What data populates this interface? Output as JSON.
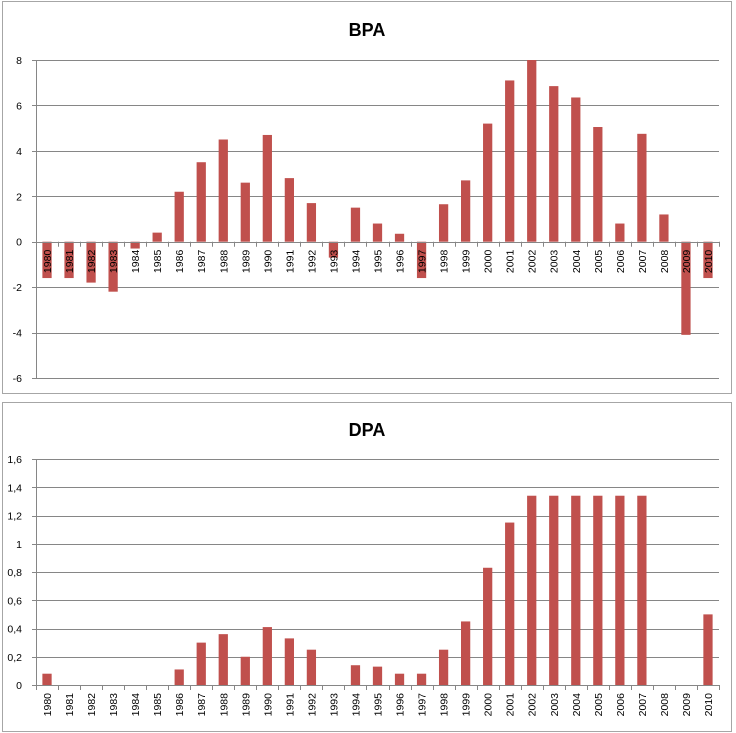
{
  "chart_data": [
    {
      "type": "bar",
      "title": "BPA",
      "categories": [
        "1980",
        "1981",
        "1982",
        "1983",
        "1984",
        "1985",
        "1986",
        "1987",
        "1988",
        "1989",
        "1990",
        "1991",
        "1992",
        "1993",
        "1994",
        "1995",
        "1996",
        "1997",
        "1998",
        "1999",
        "2000",
        "2001",
        "2002",
        "2003",
        "2004",
        "2005",
        "2006",
        "2007",
        "2008",
        "2009",
        "2010"
      ],
      "values": [
        -1.6,
        -1.6,
        -1.8,
        -2.2,
        -0.3,
        0.4,
        2.2,
        3.5,
        4.5,
        2.6,
        4.7,
        2.8,
        1.7,
        -0.7,
        1.5,
        0.8,
        0.35,
        -1.6,
        1.65,
        2.7,
        5.2,
        7.1,
        8.0,
        6.85,
        6.35,
        5.05,
        0.8,
        4.75,
        1.2,
        -4.1,
        -1.6
      ],
      "ylim": [
        -6,
        8
      ],
      "yticks": [
        "-6",
        "-4",
        "-2",
        "0",
        "2",
        "4",
        "6",
        "8"
      ],
      "grid": true,
      "bar_color": "#c0504d",
      "xlabel": "",
      "ylabel": ""
    },
    {
      "type": "bar",
      "title": "DPA",
      "categories": [
        "1980",
        "1981",
        "1982",
        "1983",
        "1984",
        "1985",
        "1986",
        "1987",
        "1988",
        "1989",
        "1990",
        "1991",
        "1992",
        "1993",
        "1994",
        "1995",
        "1996",
        "1997",
        "1998",
        "1999",
        "2000",
        "2001",
        "2002",
        "2003",
        "2004",
        "2005",
        "2006",
        "2007",
        "2008",
        "2009",
        "2010"
      ],
      "values": [
        0.08,
        0,
        0,
        0,
        0,
        0,
        0.11,
        0.3,
        0.36,
        0.2,
        0.41,
        0.33,
        0.25,
        0,
        0.14,
        0.13,
        0.08,
        0.08,
        0.25,
        0.45,
        0.83,
        1.15,
        1.34,
        1.34,
        1.34,
        1.34,
        1.34,
        1.34,
        0,
        0,
        0.5
      ],
      "ylim": [
        0,
        1.6
      ],
      "yticks": [
        "0",
        "0,2",
        "0,4",
        "0,6",
        "0,8",
        "1",
        "1,2",
        "1,4",
        "1,6"
      ],
      "grid": true,
      "bar_color": "#c0504d",
      "xlabel": "",
      "ylabel": ""
    }
  ]
}
